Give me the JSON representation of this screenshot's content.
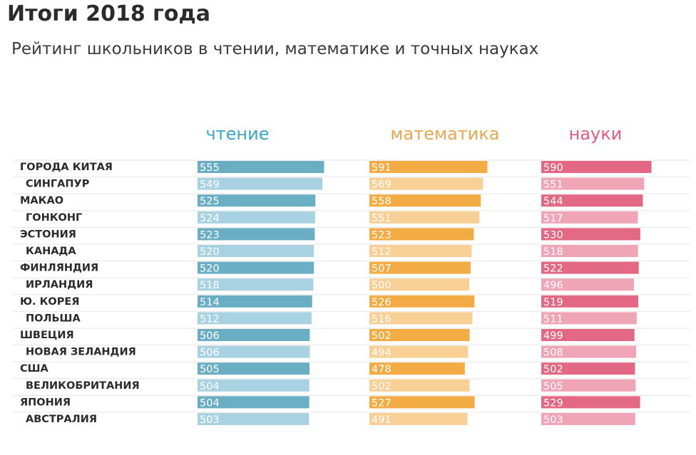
{
  "chart_data": {
    "type": "bar",
    "title": "Итоги 2018 года",
    "subtitle": "Рейтинг школьников в чтении, математике и точных науках",
    "categories": [
      "ГОРОДА КИТАЯ",
      "СИНГАПУР",
      "МАКАО",
      "ГОНКОНГ",
      "ЭСТОНИЯ",
      "КАНАДА",
      "ФИНЛЯНДИЯ",
      "ИРЛАНДИЯ",
      "Ю. КОРЕЯ",
      "ПОЛЬША",
      "ШВЕЦИЯ",
      "НОВАЯ ЗЕЛАНДИЯ",
      "США",
      "ВЕЛИКОБРИТАНИЯ",
      "ЯПОНИЯ",
      "АВСТРАЛИЯ"
    ],
    "series": [
      {
        "name": "чтение",
        "values": [
          555,
          549,
          525,
          524,
          523,
          520,
          520,
          518,
          514,
          512,
          506,
          506,
          505,
          504,
          504,
          503
        ]
      },
      {
        "name": "математика",
        "values": [
          591,
          569,
          558,
          551,
          523,
          512,
          507,
          500,
          526,
          516,
          502,
          494,
          478,
          502,
          527,
          491
        ]
      },
      {
        "name": "науки",
        "values": [
          590,
          551,
          544,
          517,
          530,
          518,
          522,
          496,
          519,
          511,
          499,
          508,
          502,
          505,
          529,
          503
        ]
      }
    ],
    "colors": {
      "чтение": {
        "header": "#3aa7c7",
        "dark": "#6aaec4",
        "light": "#a8d2e1"
      },
      "математика": {
        "header": "#e8a64e",
        "dark": "#f3ac43",
        "light": "#f8d095"
      },
      "науки": {
        "header": "#e65b7e",
        "dark": "#e36883",
        "light": "#f0a5b6"
      }
    },
    "xlabel": "",
    "ylabel": ""
  }
}
